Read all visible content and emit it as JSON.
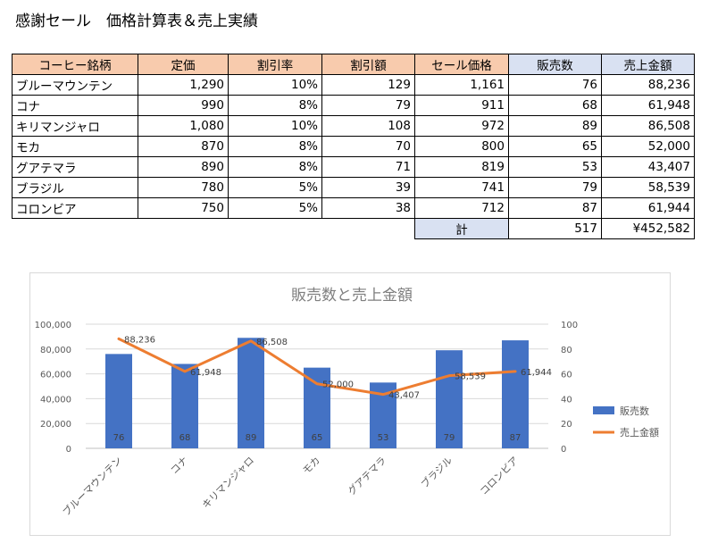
{
  "title": "感謝セール　価格計算表＆売上実績",
  "table": {
    "headers": [
      "コーヒー銘柄",
      "定価",
      "割引率",
      "割引額",
      "セール価格",
      "販売数",
      "売上金額"
    ],
    "rows": [
      [
        "ブルーマウンテン",
        "1,290",
        "10%",
        "129",
        "1,161",
        "76",
        "88,236"
      ],
      [
        "コナ",
        "990",
        "8%",
        "79",
        "911",
        "68",
        "61,948"
      ],
      [
        "キリマンジャロ",
        "1,080",
        "10%",
        "108",
        "972",
        "89",
        "86,508"
      ],
      [
        "モカ",
        "870",
        "8%",
        "70",
        "800",
        "65",
        "52,000"
      ],
      [
        "グアテマラ",
        "890",
        "8%",
        "71",
        "819",
        "53",
        "43,407"
      ],
      [
        "ブラジル",
        "780",
        "5%",
        "39",
        "741",
        "79",
        "58,539"
      ],
      [
        "コロンビア",
        "750",
        "5%",
        "38",
        "712",
        "87",
        "61,944"
      ]
    ],
    "total_label": "計",
    "total_qty": "517",
    "total_sales": "¥452,582"
  },
  "colors": {
    "bar": "#4472C4",
    "line": "#ED7D31",
    "header_orange": "#F8CBAD",
    "header_blue": "#D9E1F2"
  },
  "chart_data": {
    "type": "bar",
    "title": "販売数と売上金額",
    "categories": [
      "ブルーマウンテン",
      "コナ",
      "キリマンジャロ",
      "モカ",
      "グアテマラ",
      "ブラジル",
      "コロンビア"
    ],
    "series": [
      {
        "name": "販売数",
        "type": "bar",
        "axis": "right",
        "values": [
          76,
          68,
          89,
          65,
          53,
          79,
          87
        ]
      },
      {
        "name": "売上金額",
        "type": "line",
        "axis": "left",
        "values": [
          88236,
          61948,
          86508,
          52000,
          43407,
          58539,
          61944
        ]
      }
    ],
    "y_left": {
      "min": 0,
      "max": 100000,
      "ticks": [
        "0",
        "20,000",
        "40,000",
        "60,000",
        "80,000",
        "100,000"
      ]
    },
    "y_right": {
      "min": 0,
      "max": 100,
      "ticks": [
        "0",
        "20",
        "40",
        "60",
        "80",
        "100"
      ]
    },
    "bar_labels": [
      "76",
      "68",
      "89",
      "65",
      "53",
      "79",
      "87"
    ],
    "line_labels": [
      "88,236",
      "61,948",
      "86,508",
      "52,000",
      "43,407",
      "58,539",
      "61,944"
    ],
    "legend_position": "right",
    "grid": true
  }
}
